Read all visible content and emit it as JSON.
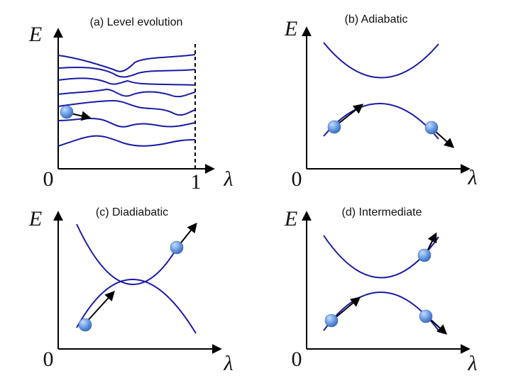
{
  "panels": {
    "a": {
      "title": "(a) Level evolution",
      "y_label": "E",
      "x_label": "λ",
      "origin_label": "0",
      "end_label": "1"
    },
    "b": {
      "title": "(b) Adiabatic",
      "y_label": "E",
      "x_label": "λ",
      "origin_label": "0"
    },
    "c": {
      "title": "(c) Diadiabatic",
      "y_label": "E",
      "x_label": "λ",
      "origin_label": "0"
    },
    "d": {
      "title": "(d) Intermediate",
      "y_label": "E",
      "x_label": "λ",
      "origin_label": "0"
    }
  },
  "colors": {
    "level_curve": "#1a1aa6",
    "particle": "#6ea0e6",
    "axis": "#000000"
  }
}
